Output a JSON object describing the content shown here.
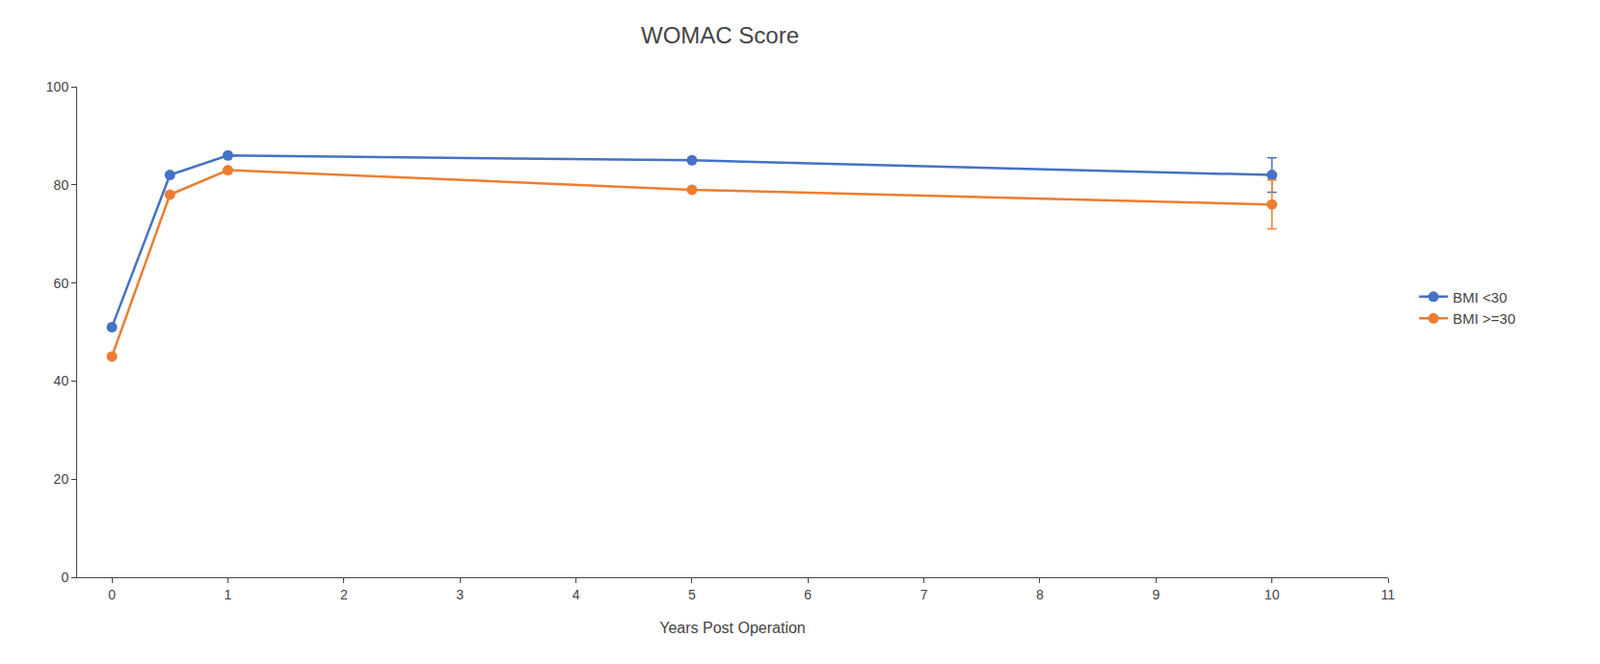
{
  "chart_data": {
    "type": "line",
    "title": "WOMAC Score",
    "xlabel": "Years Post Operation",
    "x": [
      0,
      0.5,
      1,
      5,
      10
    ],
    "series": [
      {
        "name": "BMI <30",
        "color": "#4472C4",
        "values": [
          51,
          82,
          86,
          85,
          82
        ],
        "yerr": [
          null,
          null,
          null,
          null,
          3.5
        ],
        "marker": "circle",
        "line_style": "solid"
      },
      {
        "name": "BMI >=30",
        "color": "#ED7D31",
        "values": [
          45,
          78,
          83,
          79,
          76
        ],
        "yerr": [
          null,
          null,
          null,
          null,
          5.0
        ],
        "marker": "circle",
        "line_style": "solid"
      }
    ],
    "xlim": [
      -0.3,
      11
    ],
    "xticks": [
      0,
      1,
      2,
      3,
      4,
      5,
      6,
      7,
      8,
      9,
      10,
      11
    ],
    "ylim": [
      0,
      100
    ],
    "yticks": [
      0,
      20,
      40,
      60,
      80,
      100
    ],
    "grid": false,
    "legend": "right"
  }
}
